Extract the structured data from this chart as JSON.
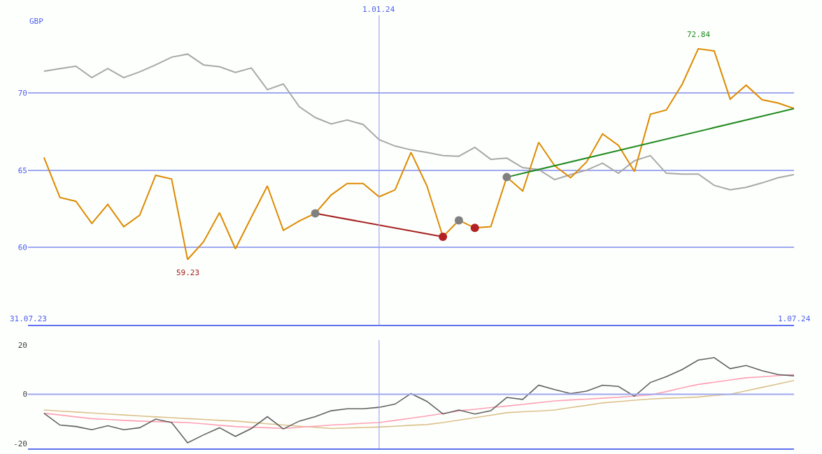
{
  "chart_data": [
    {
      "type": "line",
      "ylabel": "GBP",
      "x": [
        "2023-08-07",
        "2023-08-14",
        "2023-08-21",
        "2023-08-28",
        "2023-09-04",
        "2023-09-11",
        "2023-09-18",
        "2023-09-25",
        "2023-10-02",
        "2023-10-09",
        "2023-10-16",
        "2023-10-23",
        "2023-10-30",
        "2023-11-06",
        "2023-11-13",
        "2023-11-20",
        "2023-11-27",
        "2023-12-04",
        "2023-12-11",
        "2023-12-18",
        "2023-12-25",
        "2024-01-01",
        "2024-01-08",
        "2024-01-15",
        "2024-01-22",
        "2024-01-29",
        "2024-02-05",
        "2024-02-12",
        "2024-02-19",
        "2024-02-26",
        "2024-03-04",
        "2024-03-11",
        "2024-03-18",
        "2024-03-25",
        "2024-04-01",
        "2024-04-08",
        "2024-04-15",
        "2024-04-22",
        "2024-04-29",
        "2024-05-06",
        "2024-05-13",
        "2024-05-20",
        "2024-05-27",
        "2024-06-03",
        "2024-06-10",
        "2024-06-17",
        "2024-06-24",
        "2024-07-01"
      ],
      "series": [
        {
          "color": "#a8a8a8",
          "values": [
            71.39,
            71.56,
            71.72,
            70.98,
            71.56,
            70.98,
            71.35,
            71.8,
            72.3,
            72.5,
            71.8,
            71.68,
            71.31,
            71.6,
            70.2,
            70.57,
            69.1,
            68.4,
            67.99,
            68.24,
            67.95,
            66.97,
            66.56,
            66.31,
            66.15,
            65.94,
            65.9,
            66.48,
            65.7,
            65.78,
            65.16,
            65.04,
            64.39,
            64.71,
            65.0,
            65.45,
            64.8,
            65.61,
            65.94,
            64.8,
            64.75,
            64.75,
            64.02,
            63.73,
            63.89,
            64.18,
            64.51,
            64.71
          ]
        },
        {
          "color": "#dd8a00",
          "values": [
            65.82,
            63.24,
            62.99,
            61.56,
            62.79,
            61.35,
            62.09,
            64.67,
            64.43,
            59.23,
            60.37,
            62.25,
            59.92,
            61.97,
            63.98,
            61.11,
            61.72,
            62.21,
            63.4,
            64.14,
            64.14,
            63.28,
            63.73,
            66.15,
            63.98,
            60.7,
            61.76,
            61.27,
            61.35,
            64.55,
            63.65,
            66.8,
            65.29,
            64.51,
            65.53,
            67.34,
            66.6,
            64.92,
            68.61,
            68.89,
            70.57,
            72.84,
            72.7,
            69.59,
            70.49,
            69.55,
            69.34,
            68.98
          ]
        },
        {
          "type": "line",
          "color": "#a52020",
          "x": [
            "2023-12-04",
            "2024-01-29"
          ],
          "values": [
            62.21,
            60.7
          ]
        },
        {
          "type": "line",
          "color": "#228b22",
          "x": [
            "2024-02-26",
            "2024-07-01"
          ],
          "values": [
            64.55,
            68.98
          ]
        },
        {
          "type": "scatter",
          "marker": "circle",
          "colors": [
            "#808080",
            "#808080",
            "#808080",
            "#b22222",
            "#b22222"
          ],
          "x": [
            "2023-12-04",
            "2024-02-05",
            "2024-02-26",
            "2024-01-29",
            "2024-02-12"
          ],
          "values": [
            62.21,
            61.76,
            64.55,
            60.7,
            61.27
          ]
        }
      ],
      "xlim": [
        "2023-07-31",
        "2024-07-01"
      ],
      "xticks": [
        {
          "value": "2023-07-31",
          "label": "31.07.23"
        },
        {
          "value": "2024-07-01",
          "label": "1.07.24"
        }
      ],
      "ylim": [
        55,
        75
      ],
      "yticks": [
        60,
        65,
        70
      ],
      "grid": "y",
      "ref_lines": [
        {
          "axis": "x",
          "value": "2024-01-01",
          "label": "1.01.24",
          "color": "#a0a8f0"
        }
      ],
      "annotations": [
        {
          "text": "72.84",
          "x": "2024-05-20",
          "y": 72.84
        },
        {
          "text": "59.23",
          "x": "2023-10-09",
          "y": 59.23
        }
      ]
    },
    {
      "type": "line",
      "x": [
        "2023-08-07",
        "2023-08-14",
        "2023-08-21",
        "2023-08-28",
        "2023-09-04",
        "2023-09-11",
        "2023-09-18",
        "2023-09-25",
        "2023-10-02",
        "2023-10-09",
        "2023-10-16",
        "2023-10-23",
        "2023-10-30",
        "2023-11-06",
        "2023-11-13",
        "2023-11-20",
        "2023-11-27",
        "2023-12-04",
        "2023-12-11",
        "2023-12-18",
        "2023-12-25",
        "2024-01-01",
        "2024-01-08",
        "2024-01-15",
        "2024-01-22",
        "2024-01-29",
        "2024-02-05",
        "2024-02-12",
        "2024-02-19",
        "2024-02-26",
        "2024-03-04",
        "2024-03-11",
        "2024-03-18",
        "2024-03-25",
        "2024-04-01",
        "2024-04-08",
        "2024-04-15",
        "2024-04-22",
        "2024-04-29",
        "2024-05-06",
        "2024-05-13",
        "2024-05-20",
        "2024-05-27",
        "2024-06-03",
        "2024-06-10",
        "2024-06-17",
        "2024-06-24",
        "2024-07-01"
      ],
      "series": [
        {
          "color": "#dcc08c",
          "values": [
            -6.4,
            -6.8,
            -7.2,
            -7.6,
            -8.0,
            -8.4,
            -8.8,
            -9.2,
            -9.5,
            -9.9,
            -10.2,
            -10.6,
            -10.9,
            -11.4,
            -12.0,
            -12.5,
            -13.0,
            -13.4,
            -13.9,
            -13.7,
            -13.5,
            -13.3,
            -13.0,
            -12.6,
            -12.3,
            -11.5,
            -10.5,
            -9.5,
            -8.5,
            -7.5,
            -7.1,
            -6.8,
            -6.4,
            -5.4,
            -4.5,
            -3.5,
            -3.0,
            -2.4,
            -1.9,
            -1.6,
            -1.4,
            -1.1,
            -0.5,
            0,
            1.4,
            2.8,
            4.2,
            5.6
          ]
        },
        {
          "color": "#ffa0b4",
          "values": [
            -7.7,
            -8.4,
            -9.2,
            -9.9,
            -10.2,
            -10.6,
            -10.9,
            -11.1,
            -11.3,
            -11.5,
            -12.0,
            -12.6,
            -13.1,
            -13.4,
            -13.6,
            -13.9,
            -13.4,
            -13.0,
            -12.5,
            -12.2,
            -11.8,
            -11.5,
            -10.6,
            -9.7,
            -8.8,
            -7.8,
            -6.7,
            -6.1,
            -5.4,
            -4.8,
            -4.1,
            -3.4,
            -2.7,
            -2.3,
            -2.0,
            -1.6,
            -1.2,
            -0.7,
            -0.3,
            1.1,
            2.6,
            4.0,
            4.9,
            5.8,
            6.7,
            7.1,
            7.6,
            8.0
          ]
        },
        {
          "color": "#606060",
          "values": [
            -7.7,
            -12.5,
            -13.1,
            -14.4,
            -12.8,
            -14.4,
            -13.6,
            -10.1,
            -11.5,
            -19.7,
            -16.5,
            -13.6,
            -17.1,
            -13.9,
            -9.1,
            -14.1,
            -10.9,
            -9.1,
            -6.7,
            -5.9,
            -5.9,
            -5.3,
            -4.0,
            0.3,
            -2.9,
            -8.0,
            -6.4,
            -8.0,
            -6.7,
            -1.3,
            -2.1,
            3.7,
            1.9,
            0.3,
            1.3,
            3.7,
            3.2,
            -0.8,
            4.8,
            7.2,
            10.1,
            13.9,
            14.9,
            10.4,
            11.7,
            9.6,
            8.0,
            7.5
          ]
        }
      ],
      "xlim": [
        "2023-07-31",
        "2024-07-01"
      ],
      "ylim": [
        -22,
        22
      ],
      "yticks": [
        -20,
        0,
        20
      ],
      "tick_labels": "y",
      "ref_lines": [
        {
          "axis": "y",
          "value": 0,
          "color": "#a0a8f0"
        },
        {
          "axis": "x",
          "value": "2024-01-01",
          "color": "#a0a8f0"
        }
      ]
    }
  ]
}
